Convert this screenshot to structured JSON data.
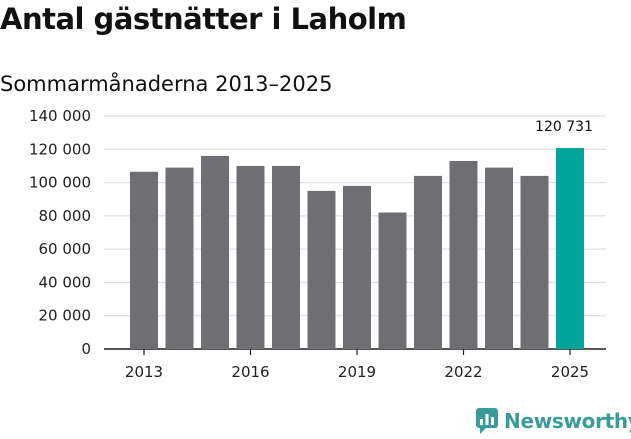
{
  "header": {
    "title": "Antal gästnätter i Laholm",
    "subtitle": "Sommarmånaderna 2013–2025"
  },
  "brand": {
    "name": "Newsworthy",
    "icon": "newsworthy-logo-icon",
    "color": "#3a9c98"
  },
  "colors": {
    "bar": "#6f6e72",
    "highlight": "#00a49a",
    "grid": "#d9d9d9",
    "axis": "#222222"
  },
  "chart_data": {
    "type": "bar",
    "title": "Antal gästnätter i Laholm",
    "subtitle": "Sommarmånaderna 2013–2025",
    "categories": [
      "2013",
      "2014",
      "2015",
      "2016",
      "2017",
      "2018",
      "2019",
      "2020",
      "2021",
      "2022",
      "2023",
      "2024",
      "2025"
    ],
    "values": [
      106500,
      109000,
      116000,
      110000,
      110000,
      95000,
      98000,
      82000,
      104000,
      113000,
      109000,
      104000,
      120731
    ],
    "highlight_index": 12,
    "data_labels": [
      {
        "index": 12,
        "text": "120 731"
      }
    ],
    "x_tick_labels": [
      "2013",
      "2016",
      "2019",
      "2022",
      "2025"
    ],
    "y_ticks": [
      0,
      20000,
      40000,
      60000,
      80000,
      100000,
      120000,
      140000
    ],
    "y_tick_labels": [
      "0",
      "20 000",
      "40 000",
      "60 000",
      "80 000",
      "100 000",
      "120 000",
      "140 000"
    ],
    "ylim": [
      0,
      140000
    ],
    "grid": true,
    "legend": "none"
  }
}
